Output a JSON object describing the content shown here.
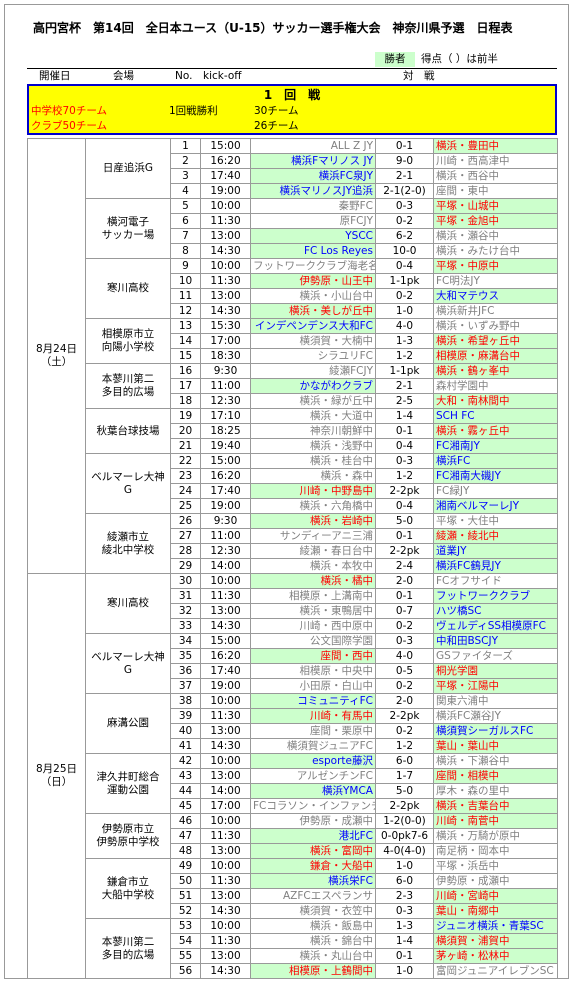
{
  "header": {
    "title": "高円宮杯　第14回　全日本ユース（U-15）サッカー選手権大会　神奈川県予選　日程表",
    "winner_label": "勝者",
    "score_note": "得点（ ）は前半"
  },
  "columns": {
    "date": "開催日",
    "venue": "会場",
    "no": "No.",
    "kickoff": "kick-off",
    "match": "対　戦"
  },
  "round": {
    "title": "1　回　戦",
    "school_teams": "中学校70チーム",
    "win_label": "1回戦勝利",
    "school_winners": "30チーム",
    "club_teams": "クラブ50チーム",
    "club_winners": "26チーム"
  },
  "style": {
    "winner_bg": "#ccffcc",
    "loser_color": "#808080",
    "red": "#ff0000",
    "blue": "#0000ff"
  },
  "days": [
    {
      "date": [
        "8月24日",
        "（土）"
      ],
      "venues": [
        {
          "name": [
            "日産追浜G"
          ],
          "matches": [
            {
              "no": 1,
              "time": "15:00",
              "home": "ALL Z JY",
              "score": "0-1",
              "away": "横浜・豊田中",
              "winner": "away",
              "color": "red"
            },
            {
              "no": 2,
              "time": "16:20",
              "home": "横浜Fマリノス JY",
              "score": "9-0",
              "away": "川崎・西高津中",
              "winner": "home",
              "color": "blue"
            },
            {
              "no": 3,
              "time": "17:40",
              "home": "横浜FC泉JY",
              "score": "2-1",
              "away": "横浜・西谷中",
              "winner": "home",
              "color": "blue"
            },
            {
              "no": 4,
              "time": "19:00",
              "home": "横浜マリノスJY追浜",
              "score": "2-1(2-0)",
              "away": "座間・東中",
              "winner": "home",
              "color": "blue"
            }
          ]
        },
        {
          "name": [
            "横河電子",
            "サッカー場"
          ],
          "matches": [
            {
              "no": 5,
              "time": "10:00",
              "home": "秦野FC",
              "score": "0-3",
              "away": "平塚・山城中",
              "winner": "away",
              "color": "red"
            },
            {
              "no": 6,
              "time": "11:30",
              "home": "原FCJY",
              "score": "0-2",
              "away": "平塚・金旭中",
              "winner": "away",
              "color": "red"
            },
            {
              "no": 7,
              "time": "13:00",
              "home": "YSCC",
              "score": "6-2",
              "away": "横浜・瀬谷中",
              "winner": "home",
              "color": "blue"
            },
            {
              "no": 8,
              "time": "14:30",
              "home": "FC Los Reyes",
              "score": "10-0",
              "away": "横浜・みたけ台中",
              "winner": "home",
              "color": "blue"
            }
          ]
        },
        {
          "name": [
            "寒川高校"
          ],
          "matches": [
            {
              "no": 9,
              "time": "10:00",
              "home": "フットワーククラブ海老名",
              "score": "0-4",
              "away": "平塚・中原中",
              "winner": "away",
              "color": "red"
            },
            {
              "no": 10,
              "time": "11:30",
              "home": "伊勢原・山王中",
              "score": "1-1pk",
              "away": "FC明法JY",
              "winner": "home",
              "color": "red"
            },
            {
              "no": 11,
              "time": "13:00",
              "home": "横浜・小山台中",
              "score": "0-2",
              "away": "大和マテウス",
              "winner": "away",
              "color": "blue"
            },
            {
              "no": 12,
              "time": "14:30",
              "home": "横浜・美しが丘中",
              "score": "1-0",
              "away": "横浜新井JFC",
              "winner": "home",
              "color": "red"
            }
          ]
        },
        {
          "name": [
            "相模原市立",
            "向陽小学校"
          ],
          "matches": [
            {
              "no": 13,
              "time": "15:30",
              "home": "インデペンデンス大和FC",
              "score": "4-0",
              "away": "横浜・いずみ野中",
              "winner": "home",
              "color": "blue"
            },
            {
              "no": 14,
              "time": "17:00",
              "home": "横須賀・大楠中",
              "score": "1-3",
              "away": "横浜・希望ヶ丘中",
              "winner": "away",
              "color": "red"
            },
            {
              "no": 15,
              "time": "18:30",
              "home": "シラユリFC",
              "score": "1-2",
              "away": "相模原・麻溝台中",
              "winner": "away",
              "color": "red"
            }
          ]
        },
        {
          "name": [
            "本蓼川第二",
            "多目的広場"
          ],
          "matches": [
            {
              "no": 16,
              "time": "9:30",
              "home": "綾瀬FCJY",
              "score": "1-1pk",
              "away": "横浜・鶴ヶ峯中",
              "winner": "away",
              "color": "red"
            },
            {
              "no": 17,
              "time": "11:00",
              "home": "かながわクラブ",
              "score": "2-1",
              "away": "森村学園中",
              "winner": "home",
              "color": "blue"
            },
            {
              "no": 18,
              "time": "12:30",
              "home": "横浜・緑が丘中",
              "score": "2-5",
              "away": "大和・南林間中",
              "winner": "away",
              "color": "red"
            }
          ]
        },
        {
          "name": [
            "秋葉台球技場"
          ],
          "matches": [
            {
              "no": 19,
              "time": "17:10",
              "home": "横浜・大道中",
              "score": "1-4",
              "away": "SCH FC",
              "winner": "away",
              "color": "blue"
            },
            {
              "no": 20,
              "time": "18:25",
              "home": "神奈川朝鮮中",
              "score": "0-1",
              "away": "横浜・霧ヶ丘中",
              "winner": "away",
              "color": "red"
            },
            {
              "no": 21,
              "time": "19:40",
              "home": "横浜・浅野中",
              "score": "0-4",
              "away": "FC湘南JY",
              "winner": "away",
              "color": "blue"
            }
          ]
        },
        {
          "name": [
            "ベルマーレ大神G"
          ],
          "matches": [
            {
              "no": 22,
              "time": "15:00",
              "home": "横浜・桂台中",
              "score": "0-3",
              "away": "横浜FC",
              "winner": "away",
              "color": "blue"
            },
            {
              "no": 23,
              "time": "16:20",
              "home": "横浜・森中",
              "score": "1-2",
              "away": "FC湘南大磯JY",
              "winner": "away",
              "color": "blue"
            },
            {
              "no": 24,
              "time": "17:40",
              "home": "川崎・中野島中",
              "score": "2-2pk",
              "away": "FC緑JY",
              "winner": "home",
              "color": "red"
            },
            {
              "no": 25,
              "time": "19:00",
              "home": "横浜・六角橋中",
              "score": "0-4",
              "away": "湘南ベルマーレJY",
              "winner": "away",
              "color": "blue"
            }
          ]
        },
        {
          "name": [
            "綾瀬市立",
            "綾北中学校"
          ],
          "matches": [
            {
              "no": 26,
              "time": "9:30",
              "home": "横浜・岩崎中",
              "score": "5-0",
              "away": "平塚・大住中",
              "winner": "home",
              "color": "red"
            },
            {
              "no": 27,
              "time": "11:00",
              "home": "サンディーアニ三浦",
              "score": "0-1",
              "away": "綾瀬・綾北中",
              "winner": "away",
              "color": "red"
            },
            {
              "no": 28,
              "time": "12:30",
              "home": "綾瀬・春日台中",
              "score": "2-2pk",
              "away": "道業JY",
              "winner": "away",
              "color": "blue"
            },
            {
              "no": 29,
              "time": "14:00",
              "home": "横浜・本牧中",
              "score": "2-4",
              "away": "横浜FC鶴見JY",
              "winner": "away",
              "color": "blue"
            }
          ]
        }
      ]
    },
    {
      "date": [
        "8月25日",
        "（日）"
      ],
      "venues": [
        {
          "name": [
            "寒川高校"
          ],
          "matches": [
            {
              "no": 30,
              "time": "10:00",
              "home": "横浜・橘中",
              "score": "2-0",
              "away": "FCオフサイド",
              "winner": "home",
              "color": "red"
            },
            {
              "no": 31,
              "time": "11:30",
              "home": "相模原・上溝南中",
              "score": "0-1",
              "away": "フットワーククラブ",
              "winner": "away",
              "color": "blue"
            },
            {
              "no": 32,
              "time": "13:00",
              "home": "横浜・東鴨居中",
              "score": "0-7",
              "away": "ハツ橋SC",
              "winner": "away",
              "color": "blue"
            },
            {
              "no": 33,
              "time": "14:30",
              "home": "川崎・西中原中",
              "score": "0-2",
              "away": "ヴェルディSS相模原FC",
              "winner": "away",
              "color": "blue"
            }
          ]
        },
        {
          "name": [
            "ベルマーレ大神G"
          ],
          "matches": [
            {
              "no": 34,
              "time": "15:00",
              "home": "公文国際学園",
              "score": "0-3",
              "away": "中和田BSCJY",
              "winner": "away",
              "color": "blue"
            },
            {
              "no": 35,
              "time": "16:20",
              "home": "座間・西中",
              "score": "4-0",
              "away": "GSファイターズ",
              "winner": "home",
              "color": "red"
            },
            {
              "no": 36,
              "time": "17:40",
              "home": "相模原・中央中",
              "score": "0-5",
              "away": "桐光学園",
              "winner": "away",
              "color": "red"
            },
            {
              "no": 37,
              "time": "19:00",
              "home": "小田原・白山中",
              "score": "0-2",
              "away": "平塚・江陽中",
              "winner": "away",
              "color": "red"
            }
          ]
        },
        {
          "name": [
            "麻溝公園"
          ],
          "matches": [
            {
              "no": 38,
              "time": "10:00",
              "home": "コミュニティFC",
              "score": "2-0",
              "away": "関東六浦中",
              "winner": "home",
              "color": "blue"
            },
            {
              "no": 39,
              "time": "11:30",
              "home": "川崎・有馬中",
              "score": "2-2pk",
              "away": "横浜FC瀬谷JY",
              "winner": "home",
              "color": "red"
            },
            {
              "no": 40,
              "time": "13:00",
              "home": "座間・栗原中",
              "score": "0-2",
              "away": "横須賀シーガルスFC",
              "winner": "away",
              "color": "blue"
            },
            {
              "no": 41,
              "time": "14:30",
              "home": "横須賀ジュニアFC",
              "score": "1-2",
              "away": "葉山・葉山中",
              "winner": "away",
              "color": "red"
            }
          ]
        },
        {
          "name": [
            "津久井町総合",
            "運動公園"
          ],
          "matches": [
            {
              "no": 42,
              "time": "10:00",
              "home": "esporte藤沢",
              "score": "6-0",
              "away": "横浜・下瀬谷中",
              "winner": "home",
              "color": "blue"
            },
            {
              "no": 43,
              "time": "13:00",
              "home": "アルゼンチンFC",
              "score": "1-7",
              "away": "座間・相模中",
              "winner": "away",
              "color": "red"
            },
            {
              "no": 44,
              "time": "14:00",
              "home": "横浜YMCA",
              "score": "5-0",
              "away": "厚木・森の里中",
              "winner": "home",
              "color": "blue"
            },
            {
              "no": 45,
              "time": "17:00",
              "home": "FCコラソン・インファンチル",
              "score": "2-2pk",
              "away": "横浜・吉葉台中",
              "winner": "away",
              "color": "red"
            }
          ]
        },
        {
          "name": [
            "伊勢原市立",
            "伊勢原中学校"
          ],
          "matches": [
            {
              "no": 46,
              "time": "10:00",
              "home": "伊勢原・成瀬中",
              "score": "1-2(0-0)",
              "away": "川崎・南菅中",
              "winner": "away",
              "color": "red"
            },
            {
              "no": 47,
              "time": "11:30",
              "home": "港北FC",
              "score": "0-0pk7-6",
              "away": "横浜・万騎が原中",
              "winner": "home",
              "color": "blue"
            },
            {
              "no": 48,
              "time": "13:00",
              "home": "横浜・富岡中",
              "score": "4-0(4-0)",
              "away": "南足柄・岡本中",
              "winner": "home",
              "color": "red"
            }
          ]
        },
        {
          "name": [
            "鎌倉市立",
            "大船中学校"
          ],
          "matches": [
            {
              "no": 49,
              "time": "10:00",
              "home": "鎌倉・大船中",
              "score": "1-0",
              "away": "平塚・浜岳中",
              "winner": "home",
              "color": "red"
            },
            {
              "no": 50,
              "time": "11:30",
              "home": "横浜栄FC",
              "score": "6-0",
              "away": "伊勢原・成瀬中",
              "winner": "home",
              "color": "blue"
            },
            {
              "no": 51,
              "time": "13:00",
              "home": "AZFCエスペランサ",
              "score": "2-3",
              "away": "川崎・宮崎中",
              "winner": "away",
              "color": "red"
            },
            {
              "no": 52,
              "time": "14:30",
              "home": "横須賀・衣笠中",
              "score": "0-3",
              "away": "葉山・南郷中",
              "winner": "away",
              "color": "red"
            }
          ]
        },
        {
          "name": [
            "本蓼川第二",
            "多目的広場"
          ],
          "matches": [
            {
              "no": 53,
              "time": "10:00",
              "home": "横浜・飯島中",
              "score": "1-3",
              "away": "ジュニオ横浜・青葉SC",
              "winner": "away",
              "color": "blue"
            },
            {
              "no": 54,
              "time": "11:30",
              "home": "横浜・錦台中",
              "score": "1-4",
              "away": "横須賀・浦賀中",
              "winner": "away",
              "color": "red"
            },
            {
              "no": 55,
              "time": "13:00",
              "home": "横浜・丸山台中",
              "score": "0-1",
              "away": "茅ヶ崎・松林中",
              "winner": "away",
              "color": "red"
            },
            {
              "no": 56,
              "time": "14:30",
              "home": "相模原・上鶴間中",
              "score": "1-0",
              "away": "富岡ジュニアイレブンSC",
              "winner": "home",
              "color": "red"
            }
          ]
        }
      ]
    }
  ]
}
